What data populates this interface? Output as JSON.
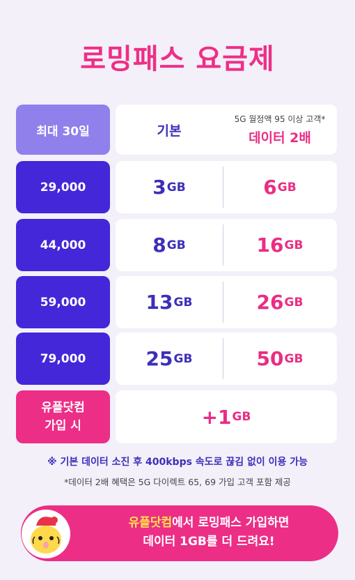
{
  "title": "로밍패스 요금제",
  "header": {
    "left_label": "최대 30일",
    "base_label": "기본",
    "double_note": "5G 월정액 95 이상 고객*",
    "double_label": "데이터 2배"
  },
  "rows": [
    {
      "price": "29,000",
      "base_amt": "3",
      "base_unit": "GB",
      "double_amt": "6",
      "double_unit": "GB"
    },
    {
      "price": "44,000",
      "base_amt": "8",
      "base_unit": "GB",
      "double_amt": "16",
      "double_unit": "GB"
    },
    {
      "price": "59,000",
      "base_amt": "13",
      "base_unit": "GB",
      "double_amt": "26",
      "double_unit": "GB"
    },
    {
      "price": "79,000",
      "base_amt": "25",
      "base_unit": "GB",
      "double_amt": "50",
      "double_unit": "GB"
    }
  ],
  "bonus_row": {
    "label_line1": "유플닷컴",
    "label_line2": "가입 시",
    "amt": "+1",
    "unit": "GB"
  },
  "notes": {
    "note1": "※ 기본 데이터 소진 후 400kbps 속도로 끊김 없이 이용 가능",
    "note2": "*데이터 2배 혜택은 5G 다이렉트 65, 69 가입 고객 포함 제공"
  },
  "banner": {
    "highlight": "유플닷컴",
    "line1_rest": "에서 로밍패스 가입하면",
    "line2": "데이터 1GB를 더 드려요!"
  },
  "colors": {
    "pink": "#ec2e86",
    "indigo": "#4427d8",
    "lavender": "#8f80ec",
    "yellow": "#ffe34a"
  }
}
